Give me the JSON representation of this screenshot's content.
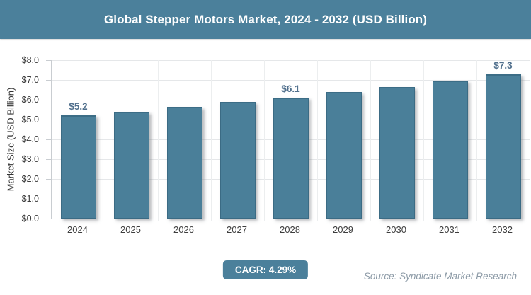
{
  "header": {
    "title": "Global Stepper Motors Market, 2024 - 2032 (USD Billion)"
  },
  "colors": {
    "accent": "#4B809B",
    "bar": "#4A7F99",
    "header_bg": "#4B809B",
    "badge_bg": "#4B809B",
    "grid": "#e5e7e9",
    "value_label": "#51708d",
    "source_text": "#8d9ba7"
  },
  "chart_data": {
    "type": "bar",
    "title": "Global Stepper Motors Market, 2024 - 2032 (USD Billion)",
    "categories": [
      "2024",
      "2025",
      "2026",
      "2027",
      "2028",
      "2029",
      "2030",
      "2031",
      "2032"
    ],
    "values": [
      5.2,
      5.4,
      5.65,
      5.9,
      6.1,
      6.4,
      6.65,
      6.95,
      7.3
    ],
    "value_labels": [
      "$5.2",
      "",
      "",
      "",
      "$6.1",
      "",
      "",
      "",
      "$7.3"
    ],
    "xlabel": "",
    "ylabel": "Market Size (USD Billion)",
    "ylim": [
      0,
      8
    ],
    "ytick_labels": [
      "$0.0",
      "$1.0",
      "$2.0",
      "$3.0",
      "$4.0",
      "$5.0",
      "$6.0",
      "$7.0",
      "$8.0"
    ],
    "grid": true,
    "legend": false
  },
  "footer": {
    "cagr_label": "CAGR: 4.29%",
    "source": "Source: Syndicate Market Research"
  }
}
